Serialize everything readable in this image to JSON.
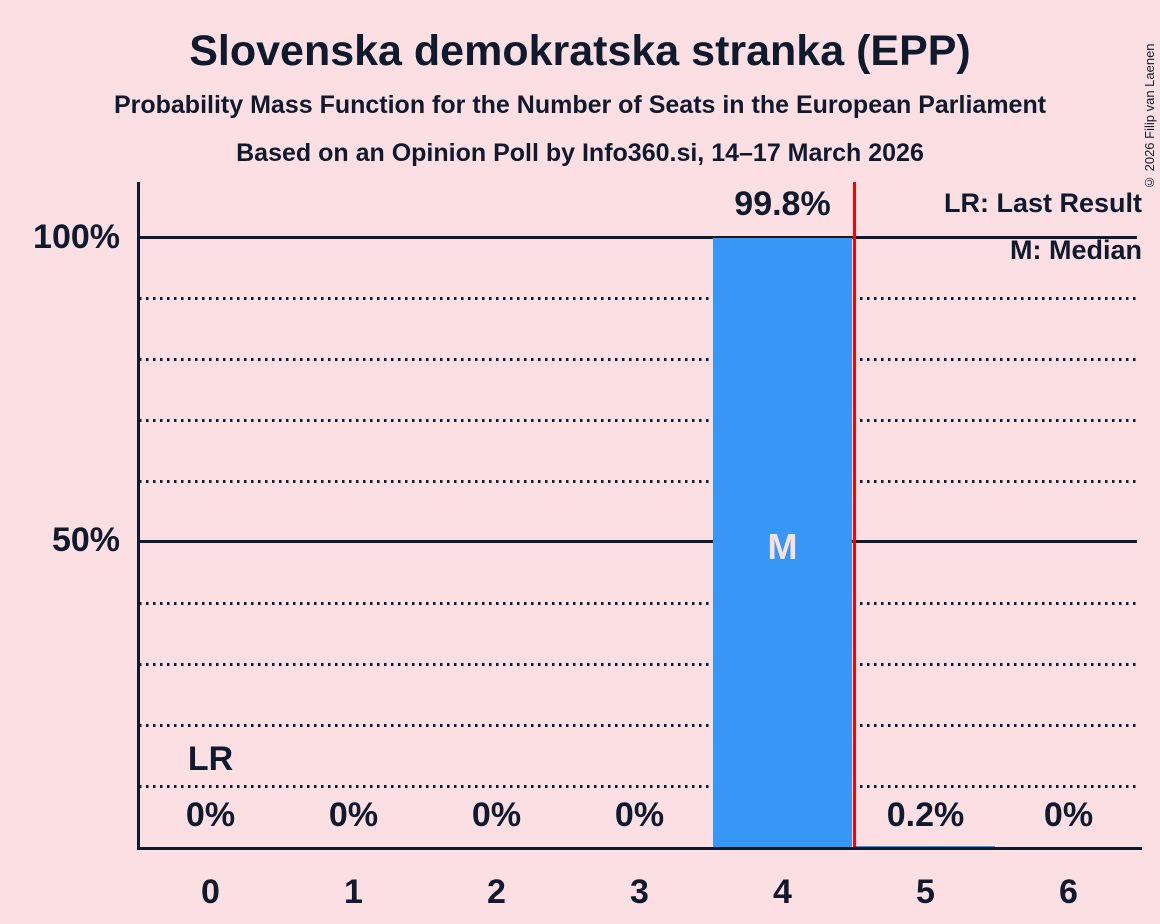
{
  "header": {
    "title": "Slovenska demokratska stranka (EPP)",
    "subtitle": "Probability Mass Function for the Number of Seats in the European Parliament",
    "poll_line": "Based on an Opinion Poll by Info360.si, 14–17 March 2026"
  },
  "copyright": "© 2026 Filip van Laenen",
  "legend": {
    "lr_label": "LR: Last Result",
    "m_label": "M: Median"
  },
  "y_axis": {
    "tick_100": "100%",
    "tick_50": "50%"
  },
  "annotations": {
    "median_marker": "M",
    "last_result_marker": "LR"
  },
  "bars": [
    {
      "seat": "0",
      "pct": "0%",
      "value": 0
    },
    {
      "seat": "1",
      "pct": "0%",
      "value": 0
    },
    {
      "seat": "2",
      "pct": "0%",
      "value": 0
    },
    {
      "seat": "3",
      "pct": "0%",
      "value": 0
    },
    {
      "seat": "4",
      "pct": "99.8%",
      "value": 99.8
    },
    {
      "seat": "5",
      "pct": "0.2%",
      "value": 0.2
    },
    {
      "seat": "6",
      "pct": "0%",
      "value": 0
    }
  ],
  "colors": {
    "bg": "#fcdfe2",
    "ink": "#0f1a2e",
    "bar": "#3797f6",
    "lr": "#ff0000"
  },
  "chart_data": {
    "type": "bar",
    "title": "Slovenska demokratska stranka (EPP)",
    "subtitle": "Probability Mass Function for the Number of Seats in the European Parliament",
    "source_note": "Based on an Opinion Poll by Info360.si, 14–17 March 2026",
    "categories": [
      "0",
      "1",
      "2",
      "3",
      "4",
      "5",
      "6"
    ],
    "values": [
      0,
      0,
      0,
      0,
      99.8,
      0.2,
      0
    ],
    "data_labels": [
      "0%",
      "0%",
      "0%",
      "0%",
      "99.8%",
      "0.2%",
      "0%"
    ],
    "xlabel": "",
    "ylabel": "",
    "ylim": [
      0,
      109
    ],
    "yticks": [
      "50%",
      "100%"
    ],
    "grid": "horizontal dotted every 10%, solid at 50% and 100%",
    "legend": [
      "LR: Last Result",
      "M: Median"
    ],
    "median_seat": 4,
    "last_result_line_x": 4.5,
    "last_result_text_column": 0,
    "bar_color": "#3797f6",
    "last_result_line_color": "#ff0000",
    "background_color": "#fcdfe2"
  }
}
